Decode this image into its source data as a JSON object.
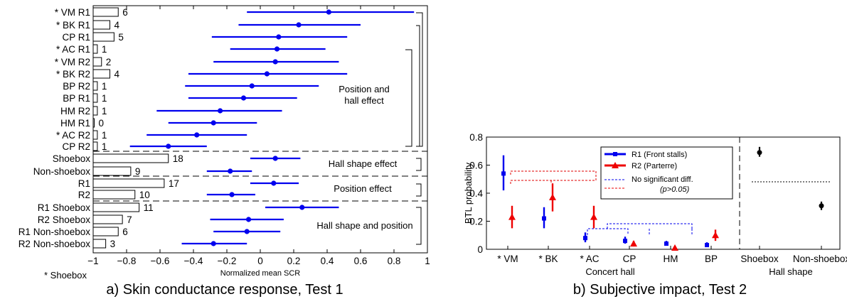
{
  "figure": {
    "caption_a": "a) Skin conductance response, Test 1",
    "caption_b": "b) Subjective impact, Test 2"
  },
  "chart_data": [
    {
      "type": "scatter",
      "name": "scr",
      "xlabel": "Normalized mean SCR",
      "xlim": [
        -1,
        1
      ],
      "xticks": [
        -1,
        -0.8,
        -0.6,
        -0.4,
        -0.2,
        0,
        0.2,
        0.4,
        0.6,
        0.8,
        1
      ],
      "xtick_labels": [
        "−1",
        "−0.8",
        "−0.6",
        "−0.4",
        "−0.2",
        "0",
        "0.2",
        "0.4",
        "0.6",
        "0.8",
        "1"
      ],
      "footnote": "* Shoebox",
      "rows": [
        {
          "label": "* VM R1",
          "mean": 0.41,
          "low": -0.08,
          "high": 0.92,
          "count": 6
        },
        {
          "label": "* BK R1",
          "mean": 0.23,
          "low": -0.13,
          "high": 0.6,
          "count": 4
        },
        {
          "label": "CP R1",
          "mean": 0.11,
          "low": -0.29,
          "high": 0.52,
          "count": 5
        },
        {
          "label": "* AC R1",
          "mean": 0.1,
          "low": -0.18,
          "high": 0.39,
          "count": 1
        },
        {
          "label": "* VM R2",
          "mean": 0.09,
          "low": -0.28,
          "high": 0.47,
          "count": 2
        },
        {
          "label": "* BK R2",
          "mean": 0.04,
          "low": -0.43,
          "high": 0.52,
          "count": 4
        },
        {
          "label": "BP R2",
          "mean": -0.05,
          "low": -0.45,
          "high": 0.35,
          "count": 1
        },
        {
          "label": "BP R1",
          "mean": -0.1,
          "low": -0.43,
          "high": 0.22,
          "count": 1
        },
        {
          "label": "HM R2",
          "mean": -0.24,
          "low": -0.62,
          "high": 0.13,
          "count": 1
        },
        {
          "label": "HM R1",
          "mean": -0.28,
          "low": -0.55,
          "high": -0.02,
          "count": 0
        },
        {
          "label": "* AC R2",
          "mean": -0.38,
          "low": -0.68,
          "high": -0.08,
          "count": 1
        },
        {
          "label": "CP R2",
          "mean": -0.55,
          "low": -0.78,
          "high": -0.32,
          "count": 1
        },
        {
          "label": "Shoebox",
          "mean": 0.09,
          "low": -0.06,
          "high": 0.24,
          "count": 18
        },
        {
          "label": "Non-shoebox",
          "mean": -0.18,
          "low": -0.32,
          "high": -0.05,
          "count": 9
        },
        {
          "label": "R1",
          "mean": 0.08,
          "low": -0.06,
          "high": 0.23,
          "count": 17
        },
        {
          "label": "R2",
          "mean": -0.17,
          "low": -0.32,
          "high": -0.03,
          "count": 10
        },
        {
          "label": "R1 Shoebox",
          "mean": 0.25,
          "low": 0.03,
          "high": 0.47,
          "count": 11
        },
        {
          "label": "R2 Shoebox",
          "mean": -0.07,
          "low": -0.3,
          "high": 0.14,
          "count": 7
        },
        {
          "label": "R1 Non-shoebox",
          "mean": -0.08,
          "low": -0.28,
          "high": 0.12,
          "count": 6
        },
        {
          "label": "R2 Non-shoebox",
          "mean": -0.28,
          "low": -0.47,
          "high": -0.08,
          "count": 3
        }
      ],
      "count_axis_max": 20,
      "group_labels": [
        "Position and\nhall effect",
        "Hall shape effect",
        "Position effect",
        "Hall shape and position"
      ],
      "series_color": "#0000ee"
    },
    {
      "type": "scatter",
      "name": "btl",
      "ylabel": "BTL probability",
      "xlabel": "Concert hall",
      "xlabel2": "Hall shape",
      "ylim": [
        0,
        0.8
      ],
      "yticks": [
        0,
        0.2,
        0.4,
        0.6,
        0.8
      ],
      "categories": [
        "* VM",
        "* BK",
        "* AC",
        "CP",
        "HM",
        "BP"
      ],
      "shape_categories": [
        "Shoebox",
        "Non-shoebox"
      ],
      "series": [
        {
          "name": "R1 (Front stalls)",
          "color": "#0000ee",
          "marker": "square",
          "values": [
            0.54,
            0.22,
            0.08,
            0.06,
            0.04,
            0.03
          ],
          "low": [
            0.42,
            0.15,
            0.05,
            0.04,
            0.03,
            0.02
          ],
          "high": [
            0.67,
            0.3,
            0.12,
            0.09,
            0.06,
            0.05
          ]
        },
        {
          "name": "R2 (Parterre)",
          "color": "#ee0000",
          "marker": "triangle",
          "values": [
            0.23,
            0.37,
            0.23,
            0.04,
            0.01,
            0.1
          ],
          "low": [
            0.15,
            0.27,
            0.15,
            0.02,
            0.0,
            0.06
          ],
          "high": [
            0.31,
            0.47,
            0.31,
            0.06,
            0.02,
            0.14
          ]
        }
      ],
      "shape_values": [
        {
          "category": "Shoebox",
          "value": 0.69,
          "low": 0.66,
          "high": 0.73
        },
        {
          "category": "Non-shoebox",
          "value": 0.31,
          "low": 0.28,
          "high": 0.34
        }
      ],
      "legend": {
        "position": "top",
        "entries": [
          "R1 (Front stalls)",
          "R2 (Parterre)",
          "No significant diff.",
          "(p>0.05)"
        ]
      }
    }
  ]
}
